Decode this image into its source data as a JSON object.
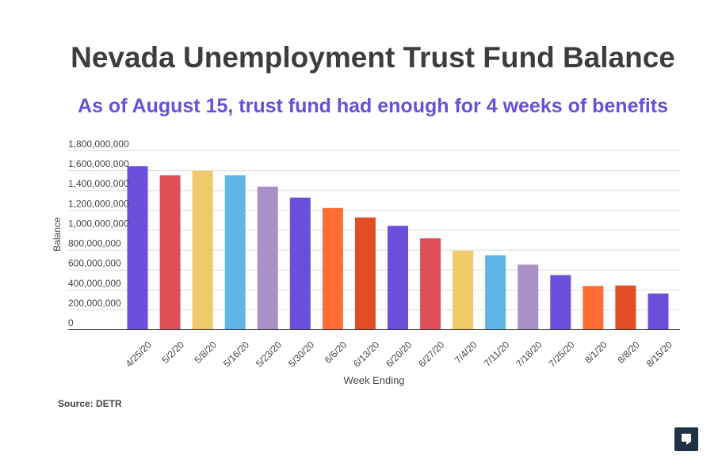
{
  "chart_data": {
    "type": "bar",
    "title": "Nevada Unemployment Trust Fund Balance",
    "subtitle": "As of August 15, trust fund had enough for 4 weeks of benefits",
    "xlabel": "Week Ending",
    "ylabel": "Balance",
    "ylim": [
      0,
      1800000000
    ],
    "yticks": [
      "0",
      "200,000,000",
      "400,000,000",
      "600,000,000",
      "800,000,000",
      "1,000,000,000",
      "1,200,000,000",
      "1,400,000,000",
      "1,600,000,000",
      "1,800,000,000"
    ],
    "ytick_values": [
      0,
      200000000,
      400000000,
      600000000,
      800000000,
      1000000000,
      1200000000,
      1400000000,
      1600000000,
      1800000000
    ],
    "grid": true,
    "categories": [
      "4/25/20",
      "5/2/20",
      "5/8/20",
      "5/16/20",
      "5/23/20",
      "5/30/20",
      "6/6/20",
      "6/13/20",
      "6/20/20",
      "6/27/20",
      "7/4/20",
      "7/11/20",
      "7/18/20",
      "7/25/20",
      "8/1/20",
      "8/8/20",
      "8/15/20"
    ],
    "values": [
      1640000000,
      1550000000,
      1595000000,
      1550000000,
      1435000000,
      1325000000,
      1220000000,
      1125000000,
      1040000000,
      915000000,
      790000000,
      745000000,
      650000000,
      545000000,
      435000000,
      440000000,
      360000000
    ],
    "bar_colors": [
      "#6b4fdb",
      "#de5058",
      "#f0c96a",
      "#5fb6e6",
      "#ab8fc9",
      "#6b4fdb",
      "#ff6d35",
      "#e24d26",
      "#6b4fdb",
      "#de5058",
      "#f0c96a",
      "#5fb6e6",
      "#ab8fc9",
      "#6b4fdb",
      "#ff6d35",
      "#e24d26",
      "#6b4fdb"
    ]
  },
  "source": "Source: DETR",
  "logo_icon": "nevada-independent-logo-icon"
}
